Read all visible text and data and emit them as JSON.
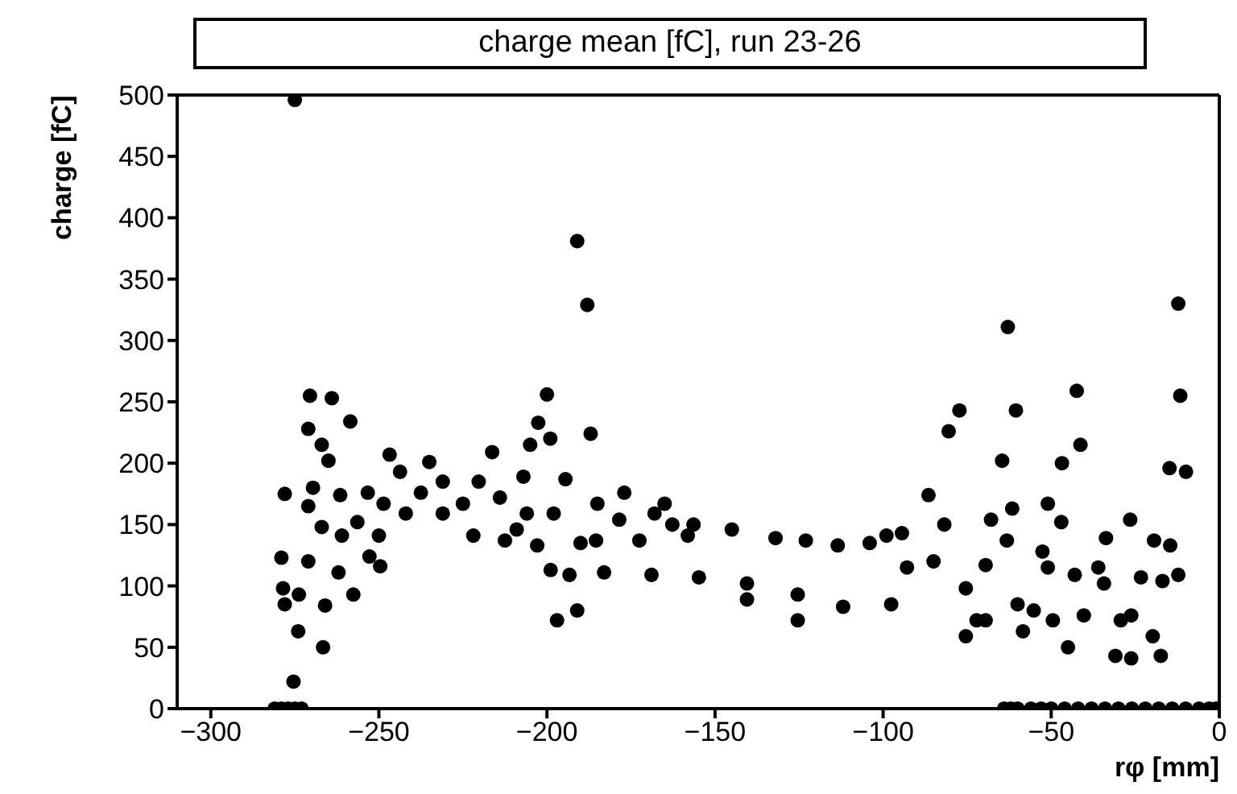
{
  "chart_data": {
    "type": "scatter",
    "title": "charge mean [fC], run 23-26",
    "xlabel": "rφ [mm]",
    "ylabel": "charge [fC]",
    "xlim": [
      -310,
      0
    ],
    "xticks": [
      -300,
      -250,
      -200,
      -150,
      -100,
      -50,
      0
    ],
    "ylim": [
      0,
      500
    ],
    "yticks": [
      0,
      50,
      100,
      150,
      200,
      250,
      300,
      350,
      400,
      450,
      500
    ],
    "grid": false,
    "marker": "circle",
    "series": [
      {
        "color": "#000000",
        "x": [
          -275,
          -191,
          -188,
          -270.5,
          -264,
          -200,
          -258.5,
          -187,
          -271,
          -267,
          -265,
          -278,
          -269.6,
          -271,
          -261.5,
          -246.8,
          -243.7,
          -235,
          -216.3,
          -205,
          -199,
          -202.6,
          -194.5,
          -207,
          -279,
          -278.5,
          -278,
          -273.8,
          -274,
          -266,
          -266.6,
          -275.4,
          -257.6,
          -249.6,
          -252.8,
          -271,
          -262,
          -267,
          -261,
          -256.4,
          -253.3,
          -248.6,
          -242,
          -237.5,
          -231,
          -225,
          -221.9,
          -220.3,
          -214,
          -212.5,
          -209,
          -202.9,
          -206,
          -198,
          -198.9,
          -193.3,
          -197,
          -191,
          -190,
          -185.4,
          -183,
          -185,
          -177,
          -172.5,
          -168,
          -165,
          -168.9,
          -158.1,
          -178.5,
          -231,
          -250,
          -12.2,
          -62.9,
          -11.6,
          -60.5,
          -42.4,
          -77.3,
          -80.5,
          -41.3,
          -46.8,
          -64.6,
          -14.8,
          -9.9,
          -86.5,
          -162.7,
          -156.4,
          -145,
          -132,
          -123,
          -113.5,
          -104,
          -99,
          -94.4,
          -154.8,
          -140.5,
          -140.5,
          -125.4,
          -125.4,
          -111.9,
          -97.6,
          -92.9,
          -85,
          -81.8,
          -75.4,
          -72.2,
          -75.4,
          -69.5,
          -67.9,
          -61.6,
          -63.2,
          -69.5,
          -60,
          -55.2,
          -58.4,
          -52.6,
          -51,
          -47,
          -49.5,
          -45,
          -40.3,
          -51,
          -43,
          -33.7,
          -26.5,
          -19.4,
          -14.6,
          -36,
          -34.3,
          -23.3,
          -16.9,
          -12.2,
          -29.3,
          -26.2,
          -30.9,
          -26.2,
          -19.8,
          -17.4,
          -281,
          -279,
          -277,
          -275,
          -273,
          -64,
          -62,
          -60,
          -56,
          -53,
          -50,
          -46,
          -42,
          -38,
          -34,
          -30,
          -26,
          -22,
          -18,
          -14,
          -10,
          -6,
          -3,
          -1
        ],
        "values": [
          496,
          381,
          329,
          255,
          253,
          256,
          234,
          224,
          228,
          215,
          202,
          175,
          180,
          165,
          174,
          207,
          193,
          201,
          209,
          215,
          220,
          233,
          187,
          189,
          123,
          98,
          85,
          93,
          63,
          84,
          50,
          22,
          93,
          116,
          124,
          120,
          111,
          148,
          141,
          152,
          176,
          167,
          159,
          176,
          159,
          167,
          141,
          185,
          172,
          137,
          146,
          133,
          159,
          159,
          113,
          109,
          72,
          80,
          135,
          137,
          111,
          167,
          176,
          137,
          159,
          167,
          109,
          141,
          154,
          185,
          141,
          330,
          311,
          255,
          243,
          259,
          243,
          226,
          215,
          200,
          202,
          196,
          193,
          174,
          150,
          150,
          146,
          139,
          137,
          133,
          135,
          141,
          143,
          107,
          102,
          89,
          93,
          72,
          83,
          85,
          115,
          120,
          150,
          98,
          72,
          59,
          72,
          154,
          163,
          137,
          117,
          85,
          80,
          63,
          128,
          167,
          152,
          72,
          50,
          76,
          115,
          109,
          139,
          154,
          137,
          133,
          115,
          102,
          107,
          104,
          109,
          72,
          76,
          43,
          41,
          59,
          43,
          0,
          0,
          0,
          0,
          0,
          0,
          0,
          0,
          0,
          0,
          0,
          0,
          0,
          0,
          0,
          0,
          0,
          0,
          0,
          0,
          0,
          0,
          0,
          0
        ]
      }
    ]
  }
}
